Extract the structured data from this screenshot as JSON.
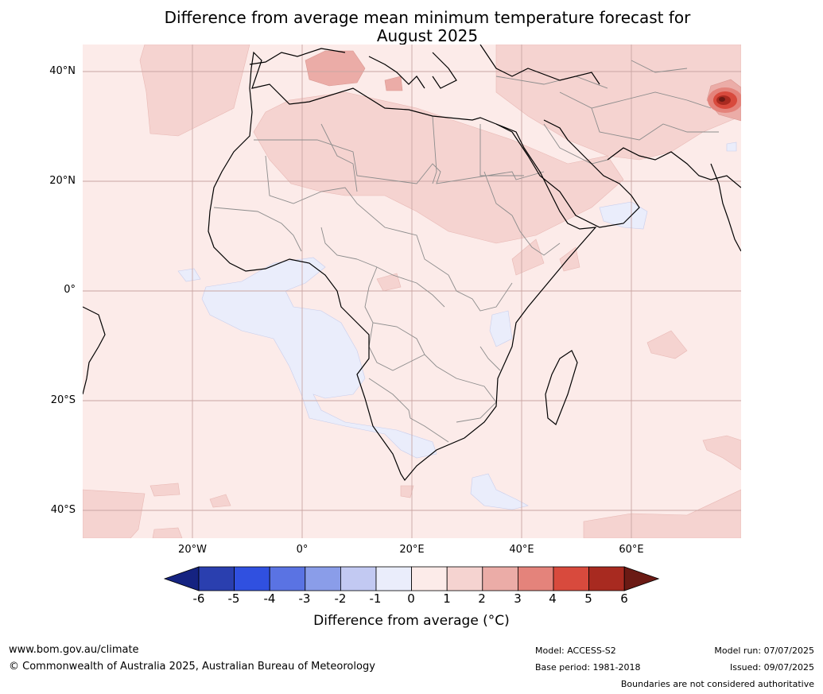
{
  "title": {
    "line1": "Difference from average mean minimum temperature forecast for",
    "line2": "August 2025"
  },
  "map": {
    "region": "Africa",
    "lat_ticks": [
      {
        "value": 40,
        "label": "40°N"
      },
      {
        "value": 20,
        "label": "20°N"
      },
      {
        "value": 0,
        "label": "0°"
      },
      {
        "value": -20,
        "label": "20°S"
      },
      {
        "value": -40,
        "label": "40°S"
      }
    ],
    "lon_ticks": [
      {
        "value": -20,
        "label": "20°W"
      },
      {
        "value": 0,
        "label": "0°"
      },
      {
        "value": 20,
        "label": "20°E"
      },
      {
        "value": 40,
        "label": "40°E"
      },
      {
        "value": 60,
        "label": "60°E"
      }
    ],
    "extent": {
      "lon_min": -40,
      "lon_max": 80,
      "lat_min": -45,
      "lat_max": 45
    }
  },
  "colorbar": {
    "ticks": [
      "-6",
      "-5",
      "-4",
      "-3",
      "-2",
      "-1",
      "0",
      "1",
      "2",
      "3",
      "4",
      "5",
      "6"
    ],
    "colors": [
      "#152381",
      "#2a3faf",
      "#3050e0",
      "#5a73e3",
      "#8a9de9",
      "#c2c9f2",
      "#eaedfb",
      "#fcebe9",
      "#f5d3d0",
      "#ebaca7",
      "#e4837b",
      "#d84a3d",
      "#a82a20",
      "#6b1a14"
    ],
    "label": "Difference from average (°C)"
  },
  "footer": {
    "website": "www.bom.gov.au/climate",
    "copyright": "© Commonwealth of Australia 2025, Australian Bureau of Meteorology",
    "model": "Model: ACCESS-S2",
    "base_period": "Base period: 1981-2018",
    "model_run": "Model run: 07/07/2025",
    "issued": "Issued: 09/07/2025",
    "disclaimer": "Boundaries are not considered authoritative"
  }
}
